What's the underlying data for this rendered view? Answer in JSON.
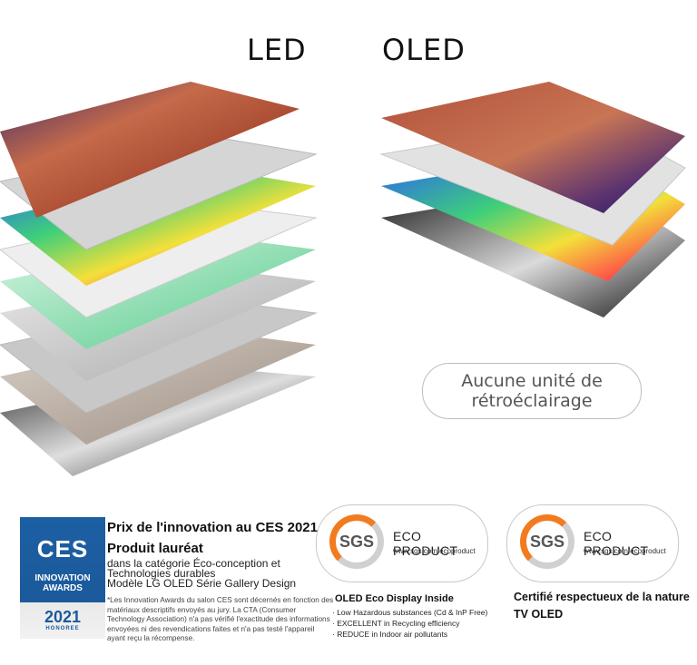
{
  "headings": {
    "led": "LED",
    "oled": "OLED"
  },
  "pill": {
    "line1": "Aucune unité de",
    "line2": "rétroéclairage"
  },
  "ces_badge": {
    "logo": "CES",
    "line1": "INNOVATION",
    "line2": "AWARDS",
    "year": "2021",
    "honoree": "HONOREE"
  },
  "award": {
    "title": "Prix de l'innovation au CES 2021",
    "subtitle": "Produit lauréat",
    "line1": "dans la catégorie Éco-conception et",
    "line2": "Technologies durables",
    "line3": "Modèle LG OLED Série Gallery Design",
    "fine": "*Les Innovation Awards du salon CES sont décernés en fonction des matériaux descriptifs envoyés au jury. La CTA (Consumer Technology Association) n'a pas vérifié l'exactitude des informations envoyées ni des revendications faites et n'a pas testé l'appareil ayant reçu la récompense."
  },
  "sgs_left": {
    "logo": "SGS",
    "eco": "ECO PRODUCT",
    "url": "www.sgs.com/ecoproduct",
    "heading": "OLED Eco Display Inside",
    "items": [
      "· Low Hazardous substances (Cd & InP Free)",
      "· EXCELLENT in Recycling efficiency",
      "· REDUCE in Indoor air pollutants"
    ]
  },
  "sgs_right": {
    "logo": "SGS",
    "eco": "ECO PRODUCT",
    "url": "www.sgs.com/ecoproduct",
    "line1": "Certifié respectueux de la nature",
    "line2": "TV OLED"
  }
}
